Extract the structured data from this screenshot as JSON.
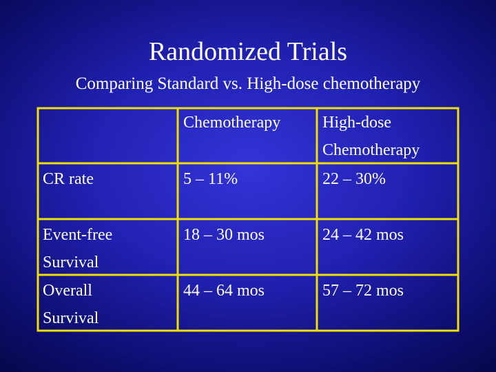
{
  "title": "Randomized Trials",
  "subtitle": "Comparing Standard vs. High-dose chemotherapy",
  "table": {
    "columns": [
      "Chemotherapy",
      "High-dose Chemotherapy"
    ],
    "rows": [
      [
        "CR rate",
        "5 – 11%",
        "22 – 30%"
      ],
      [
        "Event-free Survival",
        "18 – 30 mos",
        "24 – 42 mos"
      ],
      [
        "Overall Survival",
        "44 – 64 mos",
        "57 – 72 mos"
      ]
    ]
  }
}
